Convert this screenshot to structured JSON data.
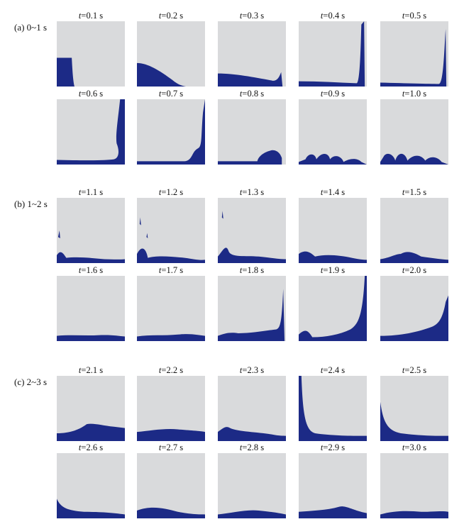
{
  "groups": [
    {
      "label": "(a) 0~1 s",
      "panels": [
        {
          "t": "0.1",
          "unit": "s"
        },
        {
          "t": "0.2",
          "unit": "s"
        },
        {
          "t": "0.3",
          "unit": "s"
        },
        {
          "t": "0.4",
          "unit": "s"
        },
        {
          "t": "0.5",
          "unit": "s"
        },
        {
          "t": "0.6",
          "unit": "s"
        },
        {
          "t": "0.7",
          "unit": "s"
        },
        {
          "t": "0.8",
          "unit": "s"
        },
        {
          "t": "0.9",
          "unit": "s"
        },
        {
          "t": "1.0",
          "unit": "s"
        }
      ]
    },
    {
      "label": "(b) 1~2 s",
      "panels": [
        {
          "t": "1.1",
          "unit": "s"
        },
        {
          "t": "1.2",
          "unit": "s"
        },
        {
          "t": "1.3",
          "unit": "s"
        },
        {
          "t": "1.4",
          "unit": "s"
        },
        {
          "t": "1.5",
          "unit": "s"
        },
        {
          "t": "1.6",
          "unit": "s"
        },
        {
          "t": "1.7",
          "unit": "s"
        },
        {
          "t": "1.8",
          "unit": "s"
        },
        {
          "t": "1.9",
          "unit": "s"
        },
        {
          "t": "2.0",
          "unit": "s"
        }
      ]
    },
    {
      "label": "(c) 2~3 s",
      "panels": [
        {
          "t": "2.1",
          "unit": "s"
        },
        {
          "t": "2.2",
          "unit": "s"
        },
        {
          "t": "2.3",
          "unit": "s"
        },
        {
          "t": "2.4",
          "unit": "s"
        },
        {
          "t": "2.5",
          "unit": "s"
        },
        {
          "t": "2.6",
          "unit": "s"
        },
        {
          "t": "2.7",
          "unit": "s"
        },
        {
          "t": "2.8",
          "unit": "s"
        },
        {
          "t": "2.9",
          "unit": "s"
        },
        {
          "t": "3.0",
          "unit": "s"
        }
      ]
    }
  ],
  "time_symbol": "t",
  "colors": {
    "fluid": "#1c2a86",
    "fluid_light": "#3a6fd0",
    "background": "#d9dadc"
  }
}
